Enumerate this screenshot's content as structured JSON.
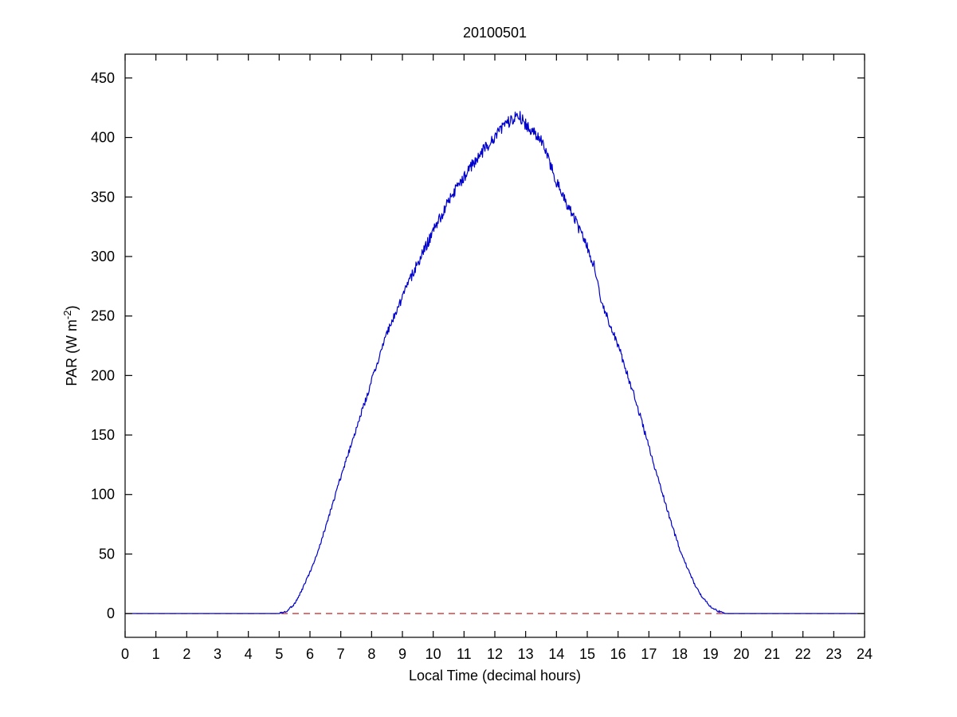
{
  "chart_data": {
    "type": "line",
    "title": "20100501",
    "xlabel": "Local Time (decimal hours)",
    "ylabel": "PAR (W m^{-2})",
    "xlim": [
      0,
      24
    ],
    "ylim": [
      -20,
      470
    ],
    "xticks": [
      0,
      1,
      2,
      3,
      4,
      5,
      6,
      7,
      8,
      9,
      10,
      11,
      12,
      13,
      14,
      15,
      16,
      17,
      18,
      19,
      20,
      21,
      22,
      23,
      24
    ],
    "yticks": [
      0,
      50,
      100,
      150,
      200,
      250,
      300,
      350,
      400,
      450
    ],
    "grid": false,
    "legend": "none",
    "background_color": "#ffffff",
    "axis_color": "#000000",
    "noise_amplitude": 5,
    "series": [
      {
        "name": "PAR",
        "color": "#0000cc",
        "x": [
          0,
          0.25,
          0.5,
          0.75,
          1,
          1.25,
          1.5,
          1.75,
          2,
          2.25,
          2.5,
          2.75,
          3,
          3.25,
          3.5,
          3.75,
          4,
          4.25,
          4.5,
          4.75,
          5,
          5.25,
          5.5,
          5.75,
          6,
          6.25,
          6.5,
          6.75,
          7,
          7.25,
          7.5,
          7.75,
          8,
          8.25,
          8.5,
          8.75,
          9,
          9.25,
          9.5,
          9.75,
          10,
          10.25,
          10.5,
          10.75,
          11,
          11.25,
          11.5,
          11.75,
          12,
          12.25,
          12.5,
          12.75,
          13,
          13.25,
          13.5,
          13.75,
          14,
          14.25,
          14.5,
          14.75,
          15,
          15.25,
          15.5,
          15.75,
          16,
          16.25,
          16.5,
          16.75,
          17,
          17.25,
          17.5,
          17.75,
          18,
          18.25,
          18.5,
          18.75,
          19,
          19.25,
          19.5,
          19.75,
          20,
          20.25,
          20.5,
          20.75,
          21,
          21.25,
          21.5,
          21.75,
          22,
          22.25,
          22.5,
          22.75,
          23,
          23.25,
          23.5,
          23.75,
          24
        ],
        "y": [
          0,
          0,
          0,
          0,
          0,
          0,
          0,
          0,
          0,
          0,
          0,
          0,
          0,
          0,
          0,
          0,
          0,
          0,
          0,
          0,
          0,
          2,
          8,
          20,
          35,
          52,
          72,
          93,
          115,
          135,
          155,
          175,
          196,
          216,
          235,
          251,
          266,
          281,
          295,
          308,
          321,
          334,
          346,
          357,
          366,
          376,
          385,
          393,
          401,
          408,
          414,
          420,
          411,
          404,
          398,
          381,
          362,
          349,
          336,
          322,
          308,
          290,
          258,
          242,
          225,
          205,
          185,
          163,
          140,
          118,
          96,
          74,
          54,
          38,
          24,
          13,
          6,
          2,
          0,
          0,
          0,
          0,
          0,
          0,
          0,
          0,
          0,
          0,
          0,
          0,
          0,
          0,
          0,
          0,
          0,
          0,
          0
        ]
      }
    ],
    "reference_line": {
      "y": 0,
      "color": "#cc2222",
      "style": "dashed"
    }
  }
}
